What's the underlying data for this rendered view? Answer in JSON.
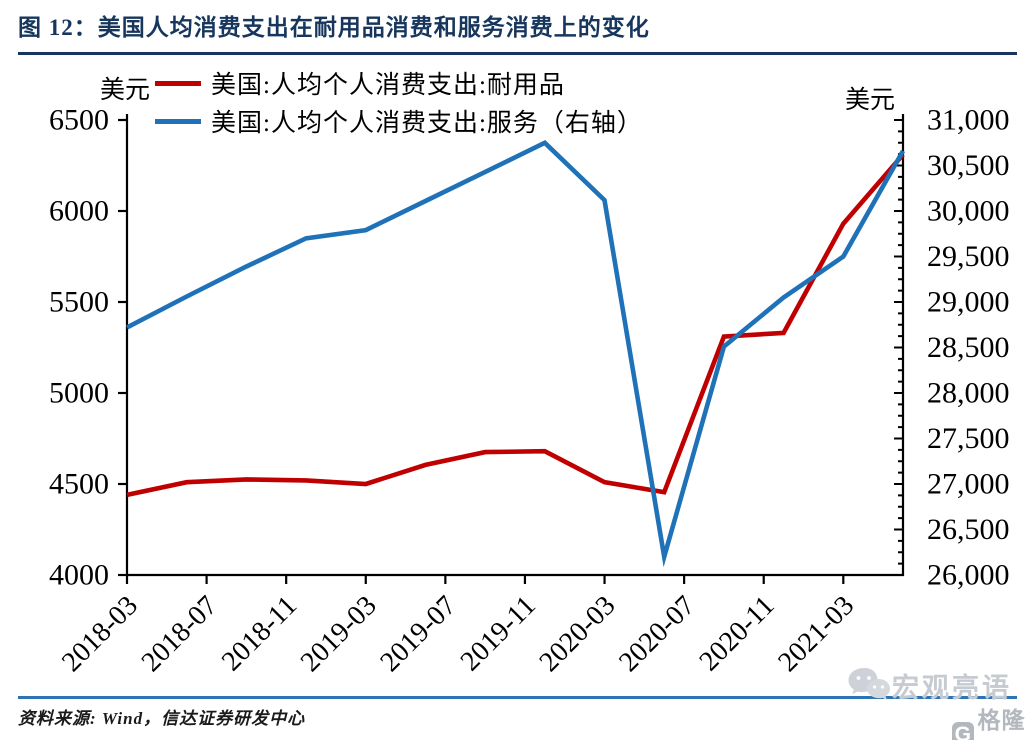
{
  "header": {
    "title": "图 12：美国人均消费支出在耐用品消费和服务消费上的变化"
  },
  "chart": {
    "left_unit": "美元",
    "right_unit": "美元",
    "legend": [
      "美国:人均个人消费支出:耐用品",
      "美国:人均个人消费支出:服务（右轴）"
    ],
    "colors": {
      "durables": "#C00000",
      "services": "#1F72B8",
      "axis": "#000000"
    }
  },
  "chart_data": {
    "type": "line",
    "categories": [
      "2018-03",
      "2018-06",
      "2018-09",
      "2018-12",
      "2019-03",
      "2019-06",
      "2019-09",
      "2019-12",
      "2020-03",
      "2020-06",
      "2020-09",
      "2020-12",
      "2021-03",
      "2021-06"
    ],
    "x_tick_labels": [
      "2018-03",
      "2018-07",
      "2018-11",
      "2019-03",
      "2019-07",
      "2019-11",
      "2020-03",
      "2020-07",
      "2020-11",
      "2021-03"
    ],
    "series": [
      {
        "name": "美国:人均个人消费支出:耐用品",
        "axis": "left",
        "color": "#C00000",
        "values": [
          4440,
          4510,
          4525,
          4520,
          4500,
          4605,
          4675,
          4680,
          4510,
          4455,
          5310,
          5330,
          5930,
          6310
        ]
      },
      {
        "name": "美国:人均个人消费支出:服务（右轴）",
        "axis": "right",
        "color": "#1F72B8",
        "values": [
          28720,
          29060,
          29390,
          29700,
          29790,
          30110,
          30430,
          30750,
          30120,
          26200,
          28510,
          29050,
          29500,
          30660
        ]
      }
    ],
    "left_axis": {
      "label": "美元",
      "min": 4000,
      "max": 6500,
      "step": 500
    },
    "right_axis": {
      "label": "美元",
      "min": 26000,
      "max": 31000,
      "step": 500,
      "minor_step": 125
    },
    "title": "美国人均消费支出在耐用品消费和服务消费上的变化",
    "legend_position": "top",
    "grid": false
  },
  "footer": {
    "source": "资料来源: Wind，信达证券研发中心",
    "watermark_wechat": "宏观亮语",
    "watermark_gelonghui": "格隆汇",
    "gelonghui_logo_letter": "G"
  }
}
